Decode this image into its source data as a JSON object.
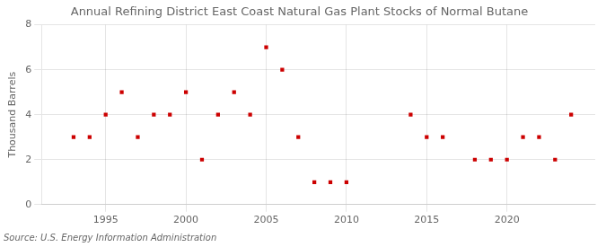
{
  "chart_data": {
    "type": "scatter",
    "title": "Annual Refining District East Coast Natural Gas Plant Stocks of Normal Butane",
    "ylabel": "Thousand Barrels",
    "source": "Source: U.S. Energy Information Administration",
    "x": [
      1993,
      1994,
      1995,
      1996,
      1997,
      1998,
      1999,
      2000,
      2001,
      2002,
      2003,
      2004,
      2005,
      2006,
      2007,
      2008,
      2009,
      2010,
      2014,
      2015,
      2016,
      2018,
      2019,
      2020,
      2021,
      2022,
      2023,
      2024
    ],
    "values": [
      3,
      3,
      4,
      5,
      3,
      4,
      4,
      5,
      2,
      4,
      5,
      4,
      7,
      6,
      3,
      1,
      1,
      1,
      4,
      3,
      3,
      2,
      2,
      2,
      3,
      3,
      2,
      4
    ],
    "xlim": [
      1991.0,
      2025.5
    ],
    "ylim": [
      0,
      8
    ],
    "xticks": [
      1995,
      2000,
      2005,
      2010,
      2015,
      2020
    ],
    "yticks": [
      0,
      2,
      4,
      6,
      8
    ],
    "color": "#cc0000",
    "marker": "square",
    "grid": true
  }
}
